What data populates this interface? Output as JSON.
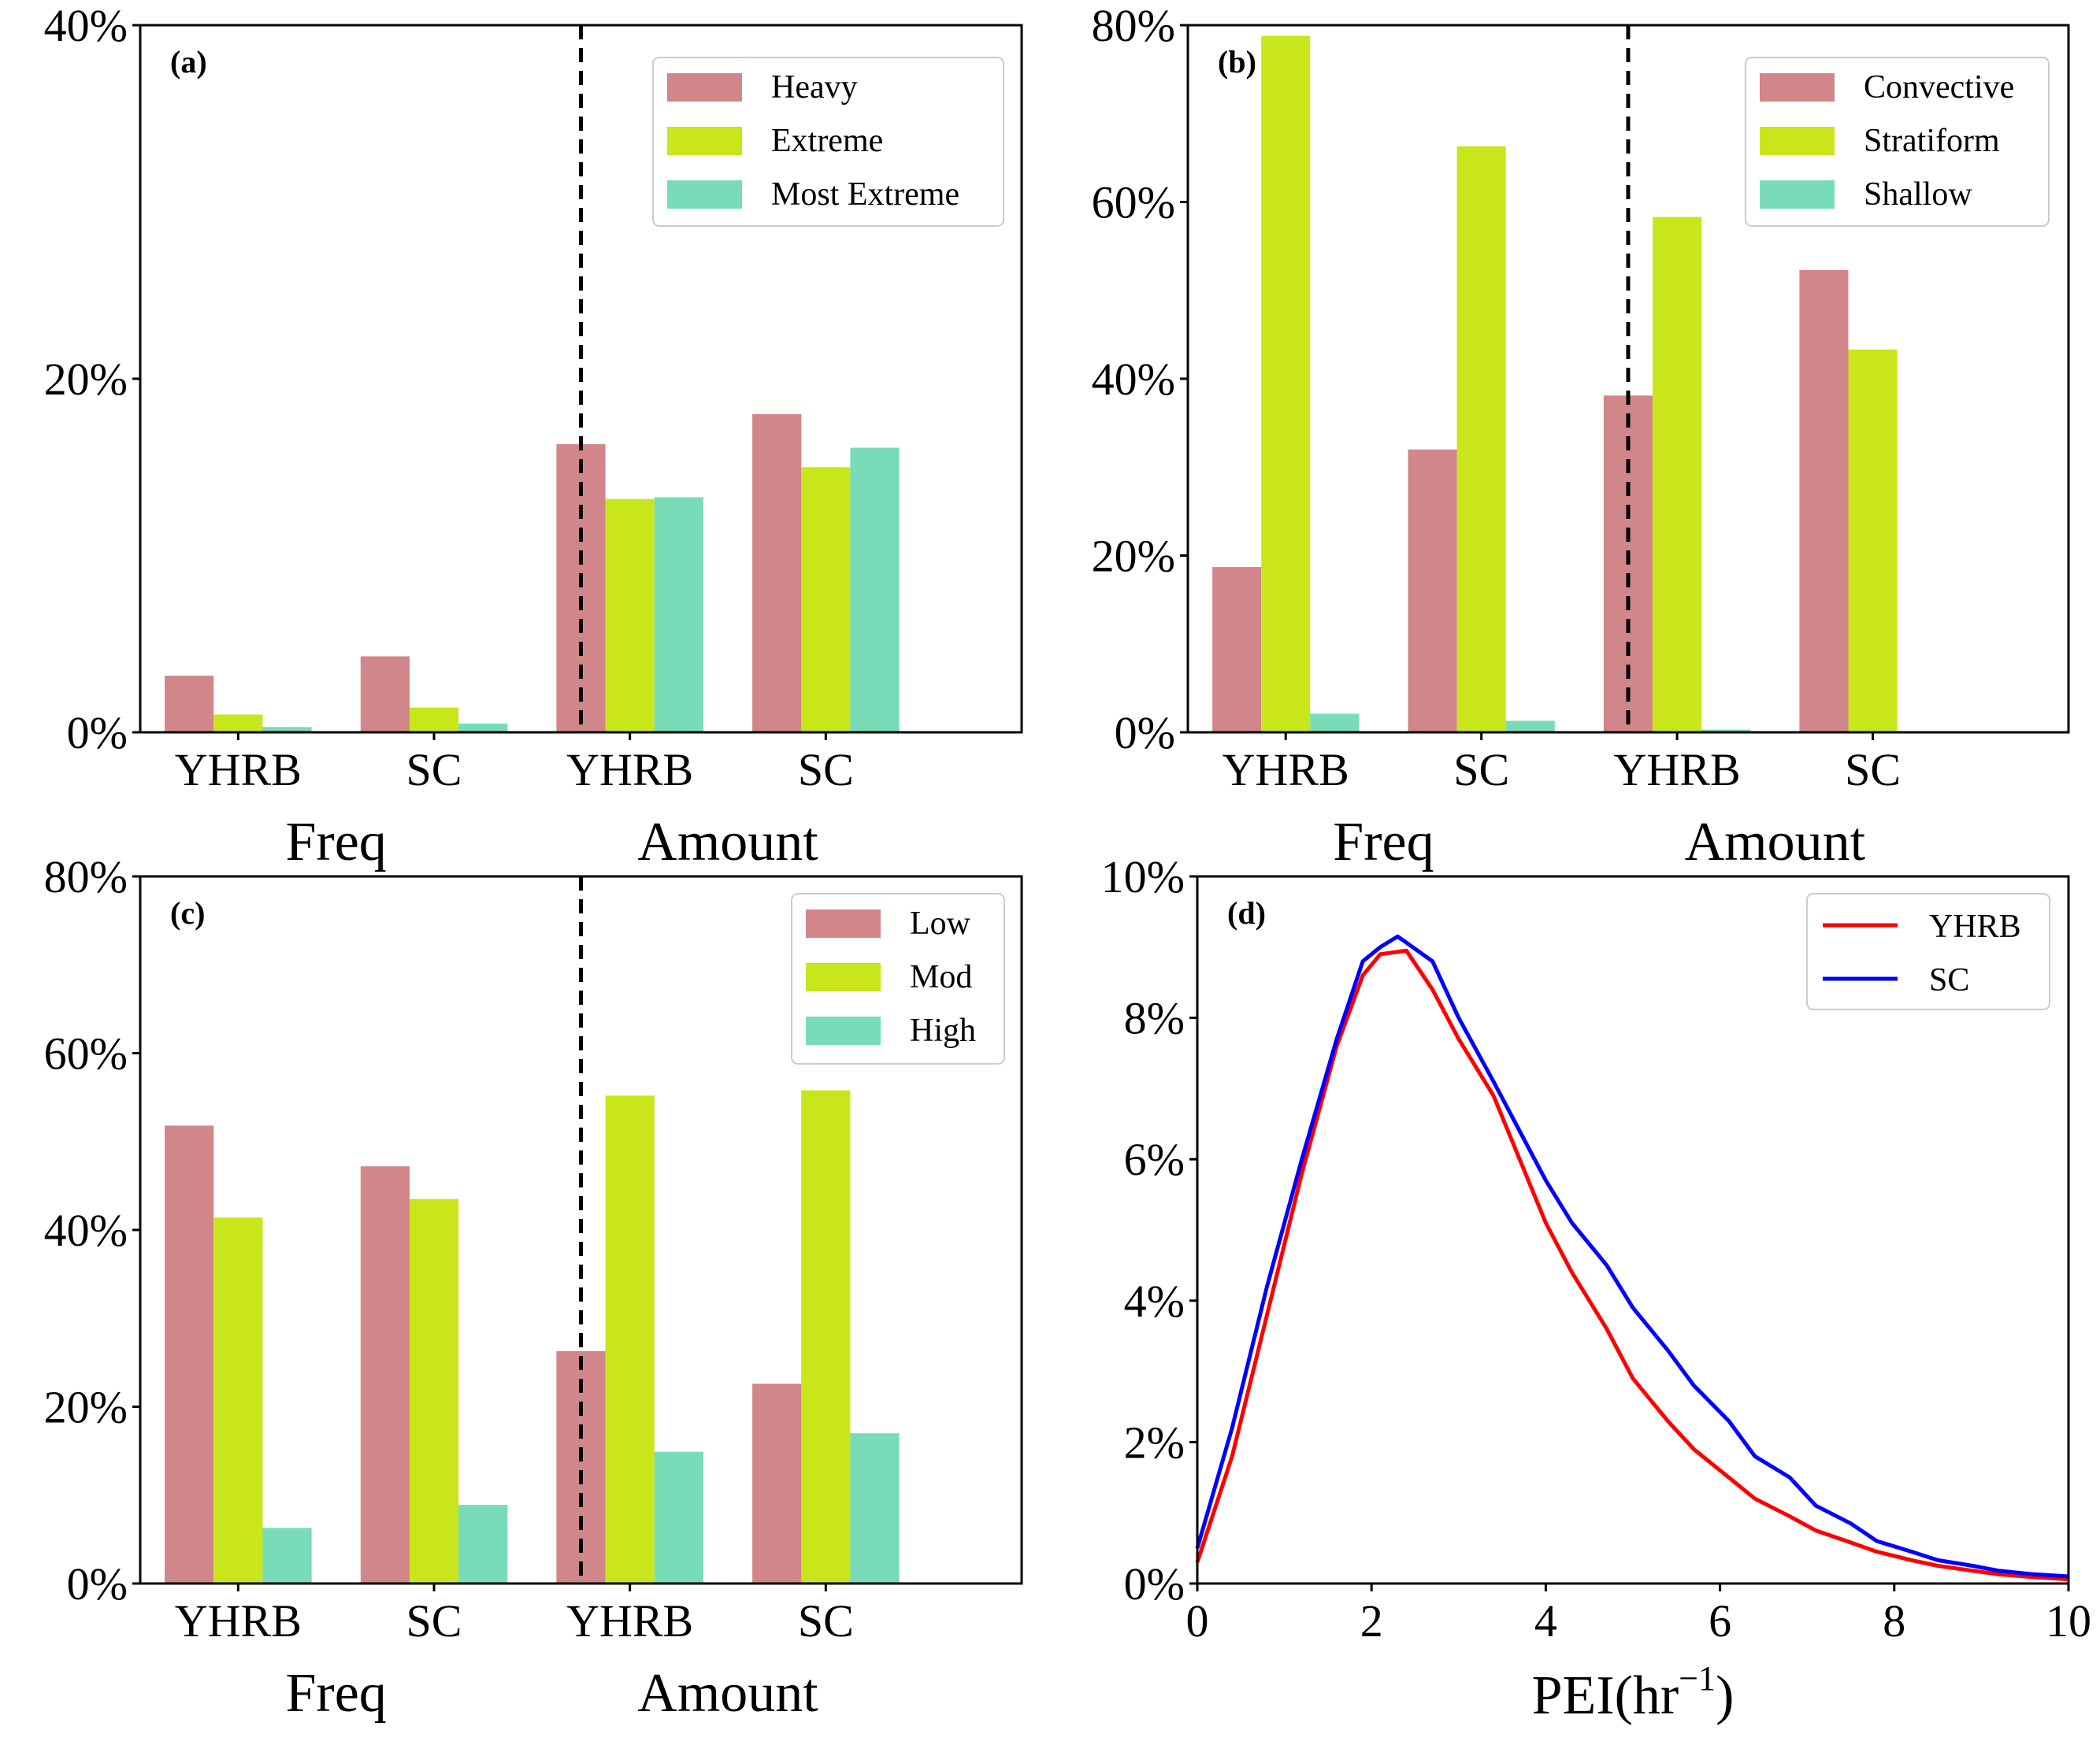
{
  "colors": {
    "c1": "#d1868a",
    "c2": "#c8e619",
    "c3": "#78dcb9",
    "yhrb_line": "#ff0000",
    "sc_line": "#0000ff"
  },
  "chart_data": [
    {
      "type": "bar",
      "panel_label": "(a)",
      "categories": [
        "YHRB",
        "SC",
        "YHRB",
        "SC"
      ],
      "groups": [
        "Freq",
        "Amount"
      ],
      "ylim": [
        0,
        40
      ],
      "yticks": [
        "0%",
        "20%",
        "40%"
      ],
      "ytick_values": [
        0,
        20,
        40
      ],
      "legend_position": "top-right",
      "series": [
        {
          "name": "Heavy",
          "color": "#d1868a",
          "values": [
            3.2,
            4.3,
            16.3,
            18.0
          ]
        },
        {
          "name": "Extreme",
          "color": "#c8e619",
          "values": [
            1.0,
            1.4,
            13.2,
            15.0
          ]
        },
        {
          "name": "Most Extreme",
          "color": "#78dcb9",
          "values": [
            0.3,
            0.5,
            13.3,
            16.1
          ]
        }
      ]
    },
    {
      "type": "bar",
      "panel_label": "(b)",
      "categories": [
        "YHRB",
        "SC",
        "YHRB",
        "SC"
      ],
      "groups": [
        "Freq",
        "Amount"
      ],
      "ylim": [
        0,
        80
      ],
      "yticks": [
        "0%",
        "20%",
        "40%",
        "60%",
        "80%"
      ],
      "ytick_values": [
        0,
        20,
        40,
        60,
        80
      ],
      "legend_position": "top-right",
      "series": [
        {
          "name": "Convective",
          "color": "#d1868a",
          "values": [
            18.7,
            32.0,
            38.1,
            52.3
          ]
        },
        {
          "name": "Stratiform",
          "color": "#c8e619",
          "values": [
            78.8,
            66.3,
            58.3,
            43.3
          ]
        },
        {
          "name": "Shallow",
          "color": "#78dcb9",
          "values": [
            2.1,
            1.3,
            0.3,
            0
          ]
        }
      ]
    },
    {
      "type": "bar",
      "panel_label": "(c)",
      "categories": [
        "YHRB",
        "SC",
        "YHRB",
        "SC"
      ],
      "groups": [
        "Freq",
        "Amount"
      ],
      "ylim": [
        0,
        80
      ],
      "yticks": [
        "0%",
        "20%",
        "40%",
        "60%",
        "80%"
      ],
      "ytick_values": [
        0,
        20,
        40,
        60,
        80
      ],
      "legend_position": "top-right",
      "series": [
        {
          "name": "Low",
          "color": "#d1868a",
          "values": [
            51.8,
            47.2,
            26.3,
            22.6
          ]
        },
        {
          "name": "Mod",
          "color": "#c8e619",
          "values": [
            41.4,
            43.5,
            55.2,
            55.8
          ]
        },
        {
          "name": "High",
          "color": "#78dcb9",
          "values": [
            6.3,
            8.9,
            14.9,
            17.0
          ]
        }
      ]
    },
    {
      "type": "line",
      "panel_label": "(d)",
      "xlabel": "PEI(hr",
      "xlabel_sup": "−1",
      "xlabel_close": ")",
      "xlim": [
        0,
        10
      ],
      "ylim": [
        0,
        10
      ],
      "xticks": [
        "0",
        "2",
        "4",
        "6",
        "8",
        "10"
      ],
      "xtick_values": [
        0,
        2,
        4,
        6,
        8,
        10
      ],
      "yticks": [
        "0%",
        "2%",
        "4%",
        "6%",
        "8%",
        "10%"
      ],
      "ytick_values": [
        0,
        2,
        4,
        6,
        8,
        10
      ],
      "legend_position": "top-right",
      "series": [
        {
          "name": "YHRB",
          "color": "#ff0000",
          "x": [
            0,
            0.4,
            0.8,
            1.2,
            1.6,
            1.9,
            2.1,
            2.4,
            2.7,
            3.0,
            3.4,
            3.7,
            4.0,
            4.3,
            4.7,
            5.0,
            5.4,
            5.7,
            6.1,
            6.4,
            6.8,
            7.1,
            7.5,
            7.8,
            8.2,
            8.5,
            8.9,
            9.2,
            9.6,
            10
          ],
          "y": [
            0.3,
            1.8,
            3.8,
            5.8,
            7.6,
            8.6,
            8.9,
            8.95,
            8.4,
            7.7,
            6.9,
            6.0,
            5.1,
            4.4,
            3.6,
            2.9,
            2.3,
            1.9,
            1.5,
            1.2,
            0.95,
            0.75,
            0.58,
            0.45,
            0.33,
            0.25,
            0.18,
            0.13,
            0.09,
            0.06
          ]
        },
        {
          "name": "SC",
          "color": "#0000ff",
          "x": [
            0,
            0.4,
            0.8,
            1.2,
            1.6,
            1.9,
            2.1,
            2.3,
            2.7,
            3.0,
            3.4,
            3.7,
            4.0,
            4.3,
            4.7,
            5.0,
            5.4,
            5.7,
            6.1,
            6.4,
            6.8,
            7.1,
            7.5,
            7.8,
            8.2,
            8.5,
            8.9,
            9.2,
            9.6,
            10
          ],
          "y": [
            0.5,
            2.2,
            4.2,
            6.0,
            7.7,
            8.8,
            9.0,
            9.15,
            8.8,
            8.0,
            7.1,
            6.4,
            5.7,
            5.1,
            4.5,
            3.9,
            3.3,
            2.8,
            2.3,
            1.8,
            1.5,
            1.1,
            0.85,
            0.6,
            0.45,
            0.33,
            0.25,
            0.18,
            0.13,
            0.1
          ]
        }
      ]
    }
  ]
}
